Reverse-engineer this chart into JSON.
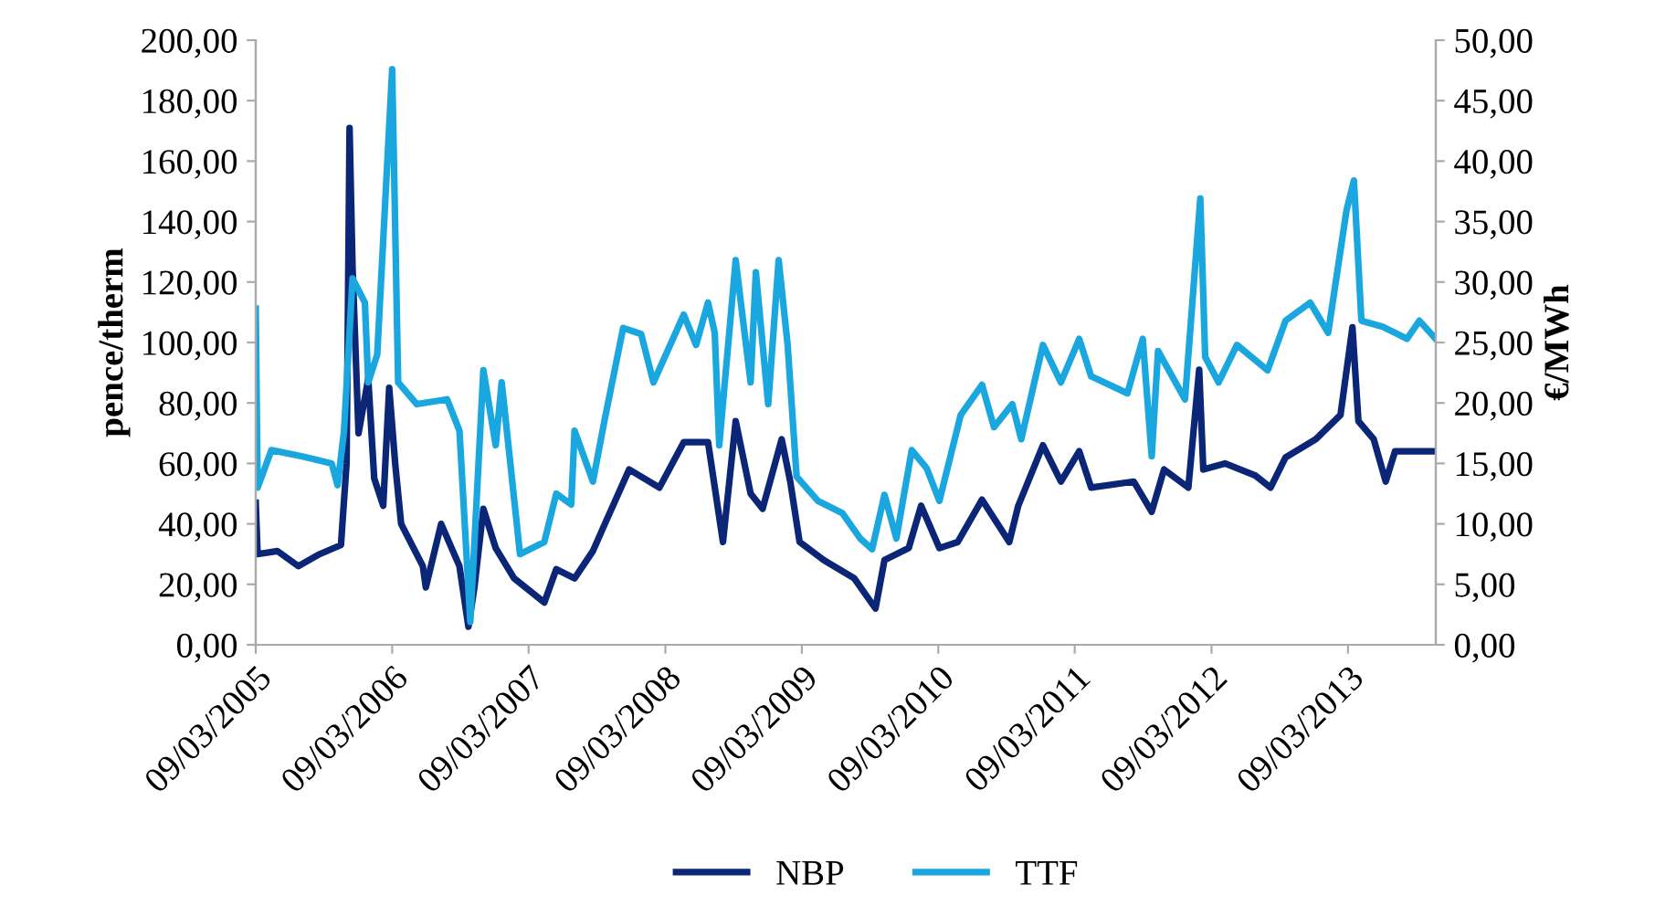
{
  "chart_data": {
    "type": "line",
    "ylabel": "pence/therm",
    "y2label": "€/MWh",
    "xlim": [
      "2005-03-09",
      "2013-10-30"
    ],
    "xticks": [
      {
        "value": "2005-03-09",
        "label": "09/03/2005"
      },
      {
        "value": "2006-03-09",
        "label": "09/03/2006"
      },
      {
        "value": "2007-03-09",
        "label": "09/03/2007"
      },
      {
        "value": "2008-03-09",
        "label": "09/03/2008"
      },
      {
        "value": "2009-03-09",
        "label": "09/03/2009"
      },
      {
        "value": "2010-03-09",
        "label": "09/03/2010"
      },
      {
        "value": "2011-03-09",
        "label": "09/03/2011"
      },
      {
        "value": "2012-03-09",
        "label": "09/03/2012"
      },
      {
        "value": "2013-03-09",
        "label": "09/03/2013"
      }
    ],
    "ylim": [
      0,
      200
    ],
    "yticks": [
      {
        "value": 0,
        "label": "0,00"
      },
      {
        "value": 20,
        "label": "20,00"
      },
      {
        "value": 40,
        "label": "40,00"
      },
      {
        "value": 60,
        "label": "60,00"
      },
      {
        "value": 80,
        "label": "80,00"
      },
      {
        "value": 100,
        "label": "100,00"
      },
      {
        "value": 120,
        "label": "120,00"
      },
      {
        "value": 140,
        "label": "140,00"
      },
      {
        "value": 160,
        "label": "160,00"
      },
      {
        "value": 180,
        "label": "180,00"
      },
      {
        "value": 200,
        "label": "200,00"
      }
    ],
    "y2lim": [
      0,
      50
    ],
    "y2ticks": [
      {
        "value": 0,
        "label": "0,00"
      },
      {
        "value": 5,
        "label": "5,00"
      },
      {
        "value": 10,
        "label": "10,00"
      },
      {
        "value": 15,
        "label": "15,00"
      },
      {
        "value": 20,
        "label": "20,00"
      },
      {
        "value": 25,
        "label": "25,00"
      },
      {
        "value": 30,
        "label": "30,00"
      },
      {
        "value": 35,
        "label": "35,00"
      },
      {
        "value": 40,
        "label": "40,00"
      },
      {
        "value": 45,
        "label": "45,00"
      },
      {
        "value": 50,
        "label": "50,00"
      }
    ],
    "grid": false,
    "legend": "bottom",
    "marker": "none",
    "line_style": "solid",
    "series": [
      {
        "name": "NBP",
        "color": "#0c2677",
        "x": [
          "2005-03-09",
          "2005-03-14",
          "2005-05-06",
          "2005-07-01",
          "2005-08-27",
          "2005-10-23",
          "2005-11-07",
          "2005-11-15",
          "2005-11-23",
          "2005-12-09",
          "2006-01-04",
          "2006-01-20",
          "2006-02-13",
          "2006-03-01",
          "2006-03-17",
          "2006-04-02",
          "2006-05-30",
          "2006-06-07",
          "2006-07-18",
          "2006-09-05",
          "2006-09-29",
          "2006-10-15",
          "2006-11-08",
          "2006-12-11",
          "2007-01-29",
          "2007-04-20",
          "2007-05-22",
          "2007-07-10",
          "2007-08-28",
          "2007-09-29",
          "2007-12-03",
          "2008-02-22",
          "2008-04-27",
          "2008-07-01",
          "2008-08-10",
          "2008-09-13",
          "2008-10-23",
          "2008-11-24",
          "2009-01-14",
          "2009-02-06",
          "2009-03-03",
          "2009-05-07",
          "2009-07-27",
          "2009-09-22",
          "2009-10-16",
          "2009-12-20",
          "2010-01-22",
          "2010-03-12",
          "2010-04-30",
          "2010-07-04",
          "2010-09-15",
          "2010-10-09",
          "2010-12-14",
          "2011-01-31",
          "2011-03-21",
          "2011-04-22",
          "2011-08-14",
          "2011-10-01",
          "2011-11-03",
          "2012-01-07",
          "2012-02-05",
          "2012-02-16",
          "2012-04-14",
          "2012-07-04",
          "2012-08-14",
          "2012-09-23",
          "2012-12-13",
          "2013-02-17",
          "2013-03-21",
          "2013-04-06",
          "2013-05-17",
          "2013-06-18",
          "2013-07-13",
          "2013-10-30"
        ],
        "values": [
          47,
          30,
          31,
          26,
          30,
          33,
          60,
          171,
          125,
          70,
          88,
          55,
          46,
          85,
          60,
          40,
          26,
          19,
          40,
          26,
          6,
          19,
          45,
          32,
          22,
          14,
          25,
          22,
          31,
          40,
          58,
          52,
          67,
          67,
          34,
          74,
          50,
          45,
          68,
          54,
          34,
          28,
          22,
          12,
          28,
          32,
          46,
          32,
          34,
          48,
          34,
          46,
          66,
          54,
          64,
          52,
          54,
          44,
          58,
          52,
          91,
          58,
          60,
          56,
          52,
          62,
          68,
          76,
          105,
          74,
          68,
          54,
          64,
          64
        ]
      },
      {
        "name": "TTF",
        "color": "#1aa6df",
        "axis": "y2",
        "x": [
          "2005-03-09",
          "2005-03-14",
          "2005-04-20",
          "2005-07-09",
          "2005-09-28",
          "2005-10-14",
          "2005-10-31",
          "2005-11-23",
          "2005-12-26",
          "2006-01-04",
          "2006-01-28",
          "2006-03-09",
          "2006-03-25",
          "2006-05-14",
          "2006-08-03",
          "2006-09-05",
          "2006-10-04",
          "2006-11-08",
          "2006-12-11",
          "2006-12-27",
          "2007-02-14",
          "2007-04-20",
          "2007-05-22",
          "2007-07-01",
          "2007-07-10",
          "2007-08-28",
          "2007-09-29",
          "2007-11-17",
          "2008-01-04",
          "2008-02-06",
          "2008-04-27",
          "2008-05-30",
          "2008-07-01",
          "2008-07-19",
          "2008-07-31",
          "2008-09-13",
          "2008-10-23",
          "2008-11-06",
          "2008-12-09",
          "2009-01-06",
          "2009-01-30",
          "2009-02-23",
          "2009-04-21",
          "2009-06-25",
          "2009-08-12",
          "2009-09-13",
          "2009-10-16",
          "2009-11-17",
          "2009-12-28",
          "2010-02-06",
          "2010-03-12",
          "2010-05-08",
          "2010-07-04",
          "2010-08-05",
          "2010-09-23",
          "2010-10-17",
          "2010-12-14",
          "2011-01-31",
          "2011-03-21",
          "2011-04-22",
          "2011-07-28",
          "2011-09-07",
          "2011-10-01",
          "2011-10-18",
          "2011-12-29",
          "2012-02-08",
          "2012-02-21",
          "2012-03-28",
          "2012-05-16",
          "2012-08-06",
          "2012-09-23",
          "2012-11-28",
          "2013-01-15",
          "2013-03-05",
          "2013-03-25",
          "2013-04-14",
          "2013-06-10",
          "2013-08-14",
          "2013-09-16",
          "2013-10-30"
        ],
        "values": [
          27.8,
          13.0,
          16.1,
          15.6,
          15.0,
          13.2,
          17.6,
          30.3,
          28.3,
          21.7,
          24.0,
          47.6,
          21.7,
          19.9,
          20.3,
          17.7,
          1.9,
          22.7,
          16.5,
          21.7,
          7.5,
          8.5,
          12.5,
          11.6,
          17.7,
          13.5,
          18.7,
          26.2,
          25.7,
          21.7,
          27.3,
          24.8,
          28.3,
          25.8,
          16.5,
          31.8,
          21.7,
          30.8,
          19.9,
          31.8,
          24.8,
          13.9,
          11.9,
          10.9,
          8.8,
          7.9,
          12.4,
          8.8,
          16.1,
          14.6,
          11.9,
          19.0,
          21.5,
          18.0,
          19.9,
          17.0,
          24.8,
          21.7,
          25.3,
          22.2,
          20.8,
          25.3,
          15.6,
          24.3,
          20.3,
          36.9,
          23.8,
          21.7,
          24.8,
          22.7,
          26.8,
          28.3,
          25.8,
          35.9,
          38.4,
          26.8,
          26.3,
          25.3,
          26.8,
          25.3
        ]
      }
    ]
  }
}
